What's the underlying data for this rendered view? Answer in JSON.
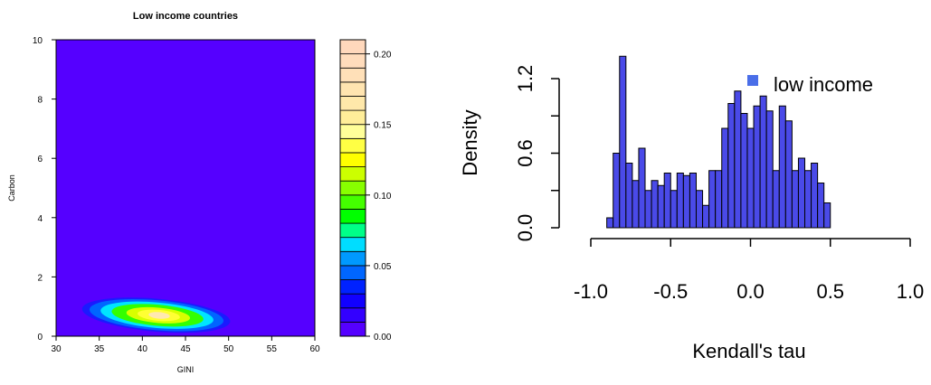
{
  "chart_data": [
    {
      "type": "heatmap",
      "title": "Low income countries",
      "xlabel": "GINI",
      "ylabel": "Carbon",
      "xlim": [
        30,
        60
      ],
      "ylim": [
        0,
        10
      ],
      "x_ticks": [
        "30",
        "35",
        "40",
        "45",
        "50",
        "55",
        "60"
      ],
      "y_ticks": [
        "0",
        "2",
        "4",
        "6",
        "8",
        "10"
      ],
      "background_color": "#5500ff",
      "density_peak": {
        "x": 42,
        "y": 0.7
      },
      "contour_levels": [
        {
          "level": 0.01,
          "color": "#1a1aff"
        },
        {
          "level": 0.03,
          "color": "#0066ff"
        },
        {
          "level": 0.06,
          "color": "#00e5ff"
        },
        {
          "level": 0.09,
          "color": "#33ff00"
        },
        {
          "level": 0.13,
          "color": "#d8ff00"
        },
        {
          "level": 0.16,
          "color": "#ffff33"
        },
        {
          "level": 0.19,
          "color": "#ffe8b0"
        }
      ],
      "colorbar": {
        "range": [
          0,
          0.21
        ],
        "tick_values": [
          0,
          0.05,
          0.1,
          0.15,
          0.2
        ],
        "tick_labels": [
          "0.00",
          "0.05",
          "0.10",
          "0.15",
          "0.20"
        ],
        "bands": [
          "#5500ff",
          "#3300ff",
          "#1100ff",
          "#0022ff",
          "#0066ff",
          "#0099ff",
          "#00ddff",
          "#00ff88",
          "#00ff00",
          "#44ff00",
          "#88ff00",
          "#ccff00",
          "#ffff00",
          "#ffff44",
          "#ffff99",
          "#ffee99",
          "#ffe8aa",
          "#ffe4b0",
          "#ffe0b8",
          "#ffdcbc",
          "#ffd8bc"
        ]
      }
    },
    {
      "type": "bar",
      "xlabel": "Kendall's tau",
      "ylabel": "Density",
      "xlim": [
        -1,
        1
      ],
      "ylim": [
        0,
        1.4
      ],
      "x_ticks": [
        "-1.0",
        "-0.5",
        "0.0",
        "0.5",
        "1.0"
      ],
      "y_ticks": [
        "0.0",
        "0.6",
        "1.2"
      ],
      "y_tick_values": [
        0,
        0.3,
        0.6,
        0.9,
        1.2
      ],
      "bin_width": 0.04,
      "bin_start": -0.9,
      "values": [
        0.08,
        0.6,
        1.38,
        0.52,
        0.38,
        0.64,
        0.3,
        0.38,
        0.34,
        0.44,
        0.3,
        0.44,
        0.42,
        0.44,
        0.3,
        0.18,
        0.46,
        0.46,
        0.8,
        1.0,
        1.1,
        0.92,
        0.8,
        0.98,
        1.06,
        0.94,
        0.46,
        0.98,
        0.86,
        0.46,
        0.56,
        0.46,
        0.52,
        0.36,
        0.2
      ],
      "bar_color": "#4a4ae8",
      "legend": {
        "label": "low income",
        "color": "#4a6ee8",
        "position": "top-right"
      }
    }
  ]
}
